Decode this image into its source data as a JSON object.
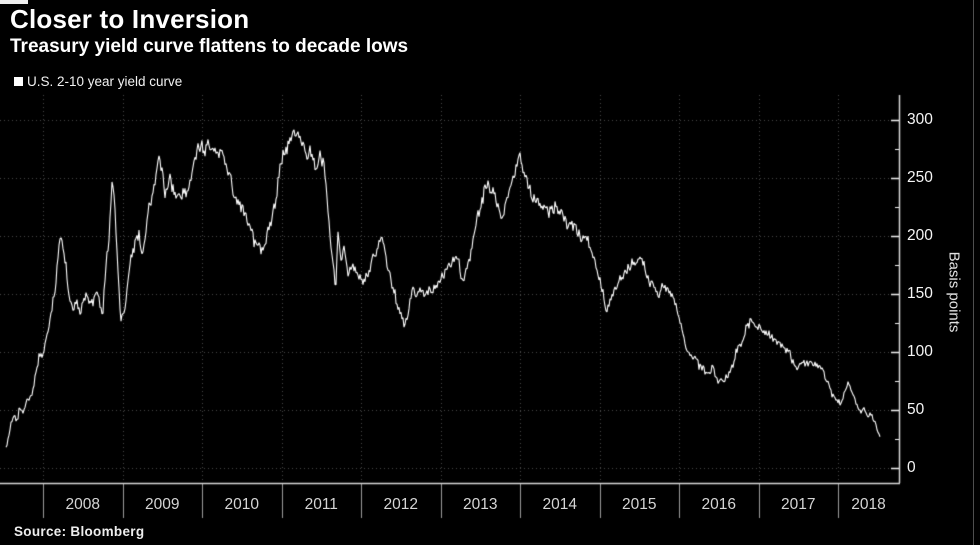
{
  "header": {
    "title": "Closer to Inversion",
    "subtitle": "Treasury yield curve flattens to decade lows"
  },
  "legend": {
    "series_label": "U.S. 2-10 year yield curve",
    "marker_color": "#ffffff"
  },
  "source": {
    "label": "Source: Bloomberg"
  },
  "y_axis": {
    "title": "Basis points",
    "ticks": [
      300,
      250,
      200,
      150,
      100,
      50,
      0
    ],
    "minor_tick_interval": 25
  },
  "x_axis": {
    "years": [
      "2008",
      "2009",
      "2010",
      "2011",
      "2012",
      "2013",
      "2014",
      "2015",
      "2016",
      "2017",
      "2018"
    ]
  },
  "colors": {
    "background": "#000000",
    "line": "#ffffff",
    "grid": "#4a4a4a",
    "axis": "#d6d6d6",
    "tick": "#f0f0f0",
    "divider": "#9c9c9c"
  },
  "chart_data": {
    "type": "line",
    "title": "Closer to Inversion",
    "subtitle": "Treasury yield curve flattens to decade lows",
    "series_name": "U.S. 2-10 year yield curve",
    "unit": "basis points",
    "x_range": [
      2007.54,
      2018.53
    ],
    "ylim": [
      -13,
      322
    ],
    "y_ticks": [
      0,
      50,
      100,
      150,
      200,
      250,
      300
    ],
    "x_ticks_years": [
      2008,
      2009,
      2010,
      2011,
      2012,
      2013,
      2014,
      2015,
      2016,
      2017,
      2018
    ],
    "grid": "dotted",
    "legend_position": "top-left",
    "points": [
      [
        2007.54,
        18
      ],
      [
        2007.58,
        32
      ],
      [
        2007.63,
        45
      ],
      [
        2007.67,
        38
      ],
      [
        2007.71,
        52
      ],
      [
        2007.75,
        47
      ],
      [
        2007.79,
        58
      ],
      [
        2007.83,
        55
      ],
      [
        2007.88,
        68
      ],
      [
        2007.92,
        82
      ],
      [
        2007.96,
        92
      ],
      [
        2008.0,
        97
      ],
      [
        2008.06,
        112
      ],
      [
        2008.1,
        130
      ],
      [
        2008.16,
        160
      ],
      [
        2008.21,
        205
      ],
      [
        2008.24,
        195
      ],
      [
        2008.29,
        175
      ],
      [
        2008.33,
        150
      ],
      [
        2008.38,
        140
      ],
      [
        2008.42,
        152
      ],
      [
        2008.46,
        136
      ],
      [
        2008.5,
        145
      ],
      [
        2008.54,
        153
      ],
      [
        2008.58,
        148
      ],
      [
        2008.63,
        145
      ],
      [
        2008.67,
        155
      ],
      [
        2008.71,
        150
      ],
      [
        2008.75,
        135
      ],
      [
        2008.79,
        180
      ],
      [
        2008.83,
        205
      ],
      [
        2008.87,
        255
      ],
      [
        2008.9,
        230
      ],
      [
        2008.94,
        182
      ],
      [
        2008.98,
        128
      ],
      [
        2009.04,
        150
      ],
      [
        2009.1,
        182
      ],
      [
        2009.16,
        195
      ],
      [
        2009.21,
        203
      ],
      [
        2009.25,
        182
      ],
      [
        2009.33,
        225
      ],
      [
        2009.4,
        242
      ],
      [
        2009.45,
        276
      ],
      [
        2009.5,
        260
      ],
      [
        2009.54,
        242
      ],
      [
        2009.58,
        254
      ],
      [
        2009.63,
        248
      ],
      [
        2009.67,
        240
      ],
      [
        2009.73,
        235
      ],
      [
        2009.79,
        244
      ],
      [
        2009.85,
        258
      ],
      [
        2009.9,
        272
      ],
      [
        2009.96,
        284
      ],
      [
        2010.04,
        283
      ],
      [
        2010.1,
        289
      ],
      [
        2010.16,
        283
      ],
      [
        2010.21,
        280
      ],
      [
        2010.27,
        276
      ],
      [
        2010.33,
        263
      ],
      [
        2010.42,
        242
      ],
      [
        2010.5,
        232
      ],
      [
        2010.58,
        220
      ],
      [
        2010.65,
        205
      ],
      [
        2010.71,
        197
      ],
      [
        2010.79,
        193
      ],
      [
        2010.83,
        210
      ],
      [
        2010.9,
        228
      ],
      [
        2010.96,
        242
      ],
      [
        2011.02,
        272
      ],
      [
        2011.08,
        282
      ],
      [
        2011.13,
        290
      ],
      [
        2011.19,
        280
      ],
      [
        2011.27,
        270
      ],
      [
        2011.33,
        266
      ],
      [
        2011.4,
        262
      ],
      [
        2011.46,
        258
      ],
      [
        2011.52,
        265
      ],
      [
        2011.56,
        242
      ],
      [
        2011.6,
        208
      ],
      [
        2011.65,
        179
      ],
      [
        2011.68,
        151
      ],
      [
        2011.71,
        205
      ],
      [
        2011.75,
        175
      ],
      [
        2011.79,
        190
      ],
      [
        2011.83,
        165
      ],
      [
        2011.88,
        172
      ],
      [
        2011.92,
        168
      ],
      [
        2011.96,
        164
      ],
      [
        2012.02,
        162
      ],
      [
        2012.08,
        172
      ],
      [
        2012.15,
        182
      ],
      [
        2012.21,
        192
      ],
      [
        2012.27,
        197
      ],
      [
        2012.33,
        173
      ],
      [
        2012.4,
        153
      ],
      [
        2012.46,
        136
      ],
      [
        2012.52,
        123
      ],
      [
        2012.56,
        119
      ],
      [
        2012.6,
        132
      ],
      [
        2012.65,
        151
      ],
      [
        2012.7,
        142
      ],
      [
        2012.75,
        147
      ],
      [
        2012.81,
        143
      ],
      [
        2012.88,
        147
      ],
      [
        2012.94,
        151
      ],
      [
        2013.03,
        162
      ],
      [
        2013.1,
        172
      ],
      [
        2013.16,
        179
      ],
      [
        2013.22,
        182
      ],
      [
        2013.27,
        162
      ],
      [
        2013.33,
        175
      ],
      [
        2013.4,
        194
      ],
      [
        2013.46,
        220
      ],
      [
        2013.54,
        240
      ],
      [
        2013.6,
        251
      ],
      [
        2013.65,
        246
      ],
      [
        2013.71,
        235
      ],
      [
        2013.77,
        225
      ],
      [
        2013.83,
        235
      ],
      [
        2013.88,
        246
      ],
      [
        2013.94,
        257
      ],
      [
        2013.99,
        265
      ],
      [
        2014.06,
        251
      ],
      [
        2014.14,
        240
      ],
      [
        2014.22,
        234
      ],
      [
        2014.29,
        231
      ],
      [
        2014.37,
        222
      ],
      [
        2014.48,
        216
      ],
      [
        2014.56,
        210
      ],
      [
        2014.65,
        204
      ],
      [
        2014.73,
        199
      ],
      [
        2014.81,
        192
      ],
      [
        2014.89,
        185
      ],
      [
        2014.96,
        173
      ],
      [
        2015.04,
        149
      ],
      [
        2015.08,
        128
      ],
      [
        2015.15,
        143
      ],
      [
        2015.22,
        152
      ],
      [
        2015.29,
        163
      ],
      [
        2015.35,
        171
      ],
      [
        2015.44,
        175
      ],
      [
        2015.51,
        178
      ],
      [
        2015.56,
        173
      ],
      [
        2015.62,
        160
      ],
      [
        2015.69,
        150
      ],
      [
        2015.73,
        147
      ],
      [
        2015.79,
        153
      ],
      [
        2015.85,
        148
      ],
      [
        2015.91,
        143
      ],
      [
        2015.96,
        138
      ],
      [
        2016.04,
        120
      ],
      [
        2016.1,
        104
      ],
      [
        2016.16,
        97
      ],
      [
        2016.22,
        95
      ],
      [
        2016.29,
        89
      ],
      [
        2016.35,
        84
      ],
      [
        2016.42,
        90
      ],
      [
        2016.5,
        76
      ],
      [
        2016.56,
        80
      ],
      [
        2016.62,
        85
      ],
      [
        2016.68,
        92
      ],
      [
        2016.73,
        102
      ],
      [
        2016.79,
        112
      ],
      [
        2016.85,
        128
      ],
      [
        2016.9,
        134
      ],
      [
        2016.96,
        126
      ],
      [
        2017.04,
        123
      ],
      [
        2017.1,
        120
      ],
      [
        2017.16,
        115
      ],
      [
        2017.25,
        112
      ],
      [
        2017.33,
        105
      ],
      [
        2017.4,
        98
      ],
      [
        2017.48,
        82
      ],
      [
        2017.54,
        88
      ],
      [
        2017.61,
        90
      ],
      [
        2017.69,
        86
      ],
      [
        2017.75,
        84
      ],
      [
        2017.81,
        80
      ],
      [
        2017.86,
        72
      ],
      [
        2017.92,
        63
      ],
      [
        2017.98,
        58
      ],
      [
        2018.04,
        54
      ],
      [
        2018.08,
        62
      ],
      [
        2018.12,
        75
      ],
      [
        2018.16,
        68
      ],
      [
        2018.2,
        60
      ],
      [
        2018.25,
        52
      ],
      [
        2018.29,
        47
      ],
      [
        2018.33,
        50
      ],
      [
        2018.37,
        45
      ],
      [
        2018.42,
        48
      ],
      [
        2018.46,
        40
      ],
      [
        2018.5,
        33
      ],
      [
        2018.53,
        27
      ]
    ]
  }
}
